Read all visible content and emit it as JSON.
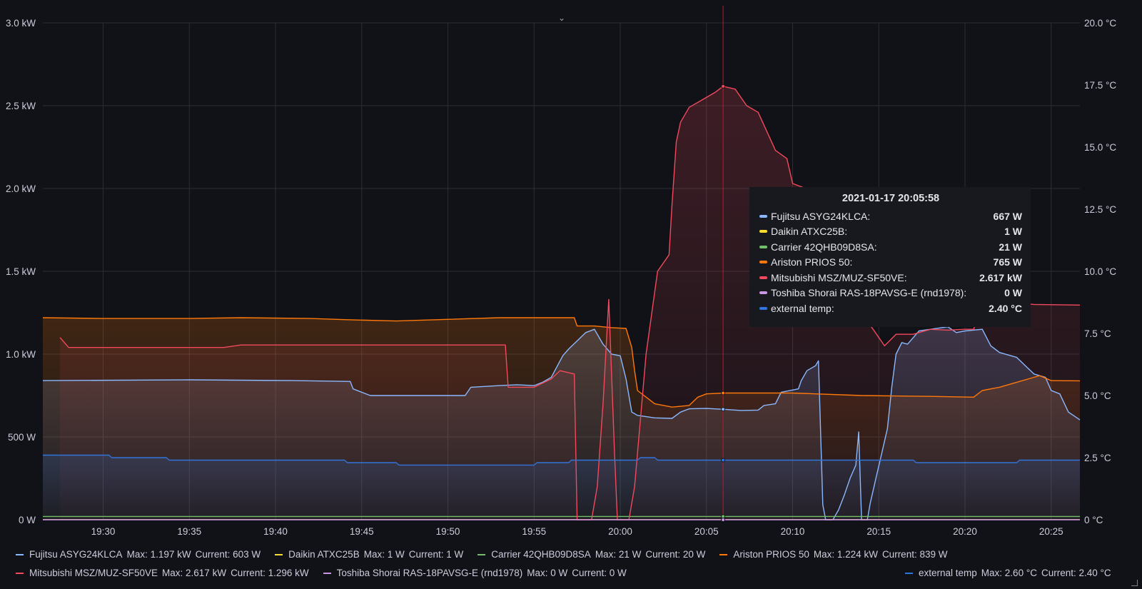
{
  "colors": {
    "background": "#111217",
    "grid": "#2c2d33",
    "text": "#ccccdc"
  },
  "chart_data": {
    "type": "line",
    "x_range": [
      "19:26:30",
      "20:26:40"
    ],
    "x_ticks": [
      "19:30",
      "19:35",
      "19:40",
      "19:45",
      "19:50",
      "19:55",
      "20:00",
      "20:05",
      "20:10",
      "20:15",
      "20:20",
      "20:25"
    ],
    "y_left": {
      "unit": "W",
      "range": [
        0,
        3000
      ],
      "ticks": [
        {
          "value": 0,
          "label": "0 W"
        },
        {
          "value": 500,
          "label": "500 W"
        },
        {
          "value": 1000,
          "label": "1.0 kW"
        },
        {
          "value": 1500,
          "label": "1.5 kW"
        },
        {
          "value": 2000,
          "label": "2.0 kW"
        },
        {
          "value": 2500,
          "label": "2.5 kW"
        },
        {
          "value": 3000,
          "label": "3.0 kW"
        }
      ]
    },
    "y_right": {
      "unit": "°C",
      "range": [
        0,
        20
      ],
      "ticks": [
        {
          "value": 0,
          "label": "0 °C"
        },
        {
          "value": 2.5,
          "label": "2.5 °C"
        },
        {
          "value": 5,
          "label": "5.0 °C"
        },
        {
          "value": 7.5,
          "label": "7.5 °C"
        },
        {
          "value": 10,
          "label": "10.0 °C"
        },
        {
          "value": 12.5,
          "label": "12.5 °C"
        },
        {
          "value": 15,
          "label": "15.0 °C"
        },
        {
          "value": 17.5,
          "label": "17.5 °C"
        },
        {
          "value": 20,
          "label": "20.0 °C"
        }
      ]
    },
    "grid": true,
    "legend_placement": "bottom",
    "crosshair_time": "20:05:58",
    "series": [
      {
        "name": "Fujitsu ASYG24KLCA",
        "axis": "left",
        "color": "#8ab8ff",
        "fill": true,
        "max": "Max: 1.197 kW",
        "current": "Current: 603 W",
        "tooltip_value": "667 W",
        "points": [
          [
            "19:26:30",
            840
          ],
          [
            "19:35",
            845
          ],
          [
            "19:41",
            840
          ],
          [
            "19:44:20",
            835
          ],
          [
            "19:44:30",
            790
          ],
          [
            "19:45:30",
            750
          ],
          [
            "19:51",
            750
          ],
          [
            "19:51:20",
            800
          ],
          [
            "19:53",
            810
          ],
          [
            "19:54",
            815
          ],
          [
            "19:55",
            810
          ],
          [
            "19:55:30",
            830
          ],
          [
            "19:56",
            860
          ],
          [
            "19:56:40",
            990
          ],
          [
            "19:57",
            1030
          ],
          [
            "19:58",
            1130
          ],
          [
            "19:58:30",
            1150
          ],
          [
            "19:59",
            1060
          ],
          [
            "19:59:30",
            1000
          ],
          [
            "20:00",
            990
          ],
          [
            "20:00:20",
            850
          ],
          [
            "20:00:40",
            650
          ],
          [
            "20:01",
            630
          ],
          [
            "20:02",
            615
          ],
          [
            "20:03",
            612
          ],
          [
            "20:03:30",
            650
          ],
          [
            "20:04",
            670
          ],
          [
            "20:05",
            672
          ],
          [
            "20:06",
            667
          ],
          [
            "20:07",
            660
          ],
          [
            "20:08",
            662
          ],
          [
            "20:08:20",
            690
          ],
          [
            "20:09",
            700
          ],
          [
            "20:09:20",
            770
          ],
          [
            "20:10:20",
            790
          ],
          [
            "20:10:30",
            840
          ],
          [
            "20:10:50",
            900
          ],
          [
            "20:11:20",
            930
          ],
          [
            "20:11:30",
            960
          ],
          [
            "20:11:45",
            90
          ],
          [
            "20:11:55",
            0
          ],
          [
            "20:12:20",
            0
          ],
          [
            "20:12:40",
            60
          ],
          [
            "20:13",
            150
          ],
          [
            "20:13:20",
            250
          ],
          [
            "20:13:40",
            330
          ],
          [
            "20:13:50",
            530
          ],
          [
            "20:14",
            0
          ],
          [
            "20:14:20",
            0
          ],
          [
            "20:14:30",
            100
          ],
          [
            "20:14:50",
            250
          ],
          [
            "20:15:10",
            400
          ],
          [
            "20:15:30",
            550
          ],
          [
            "20:15:45",
            800
          ],
          [
            "20:16",
            1000
          ],
          [
            "20:16:20",
            1070
          ],
          [
            "20:16:40",
            1060
          ],
          [
            "20:17",
            1100
          ],
          [
            "20:17:20",
            1140
          ],
          [
            "20:18",
            1150
          ],
          [
            "20:19",
            1165
          ],
          [
            "20:19:30",
            1130
          ],
          [
            "20:20",
            1140
          ],
          [
            "20:21",
            1150
          ],
          [
            "20:21:30",
            1050
          ],
          [
            "20:22",
            1010
          ],
          [
            "20:23",
            980
          ],
          [
            "20:23:30",
            930
          ],
          [
            "20:24",
            880
          ],
          [
            "20:24:40",
            860
          ],
          [
            "20:25",
            780
          ],
          [
            "20:25:30",
            760
          ],
          [
            "20:26",
            650
          ],
          [
            "20:26:40",
            603
          ]
        ]
      },
      {
        "name": "Daikin ATXC25B",
        "axis": "left",
        "color": "#fade2a",
        "fill": false,
        "max": "Max: 1 W",
        "current": "Current: 1 W",
        "tooltip_value": "1 W",
        "points": [
          [
            "19:26:30",
            1
          ],
          [
            "20:26:40",
            1
          ]
        ]
      },
      {
        "name": "Carrier 42QHB09D8SA",
        "axis": "left",
        "color": "#73bf69",
        "fill": false,
        "max": "Max: 21 W",
        "current": "Current: 20 W",
        "tooltip_value": "21 W",
        "points": [
          [
            "19:26:30",
            20
          ],
          [
            "20:26:40",
            20
          ]
        ]
      },
      {
        "name": "Ariston PRIOS 50",
        "axis": "left",
        "color": "#ff780a",
        "fill": true,
        "max": "Max: 1.224 kW",
        "current": "Current: 839 W",
        "tooltip_value": "765 W",
        "points": [
          [
            "19:26:30",
            1220
          ],
          [
            "19:30",
            1215
          ],
          [
            "19:35",
            1215
          ],
          [
            "19:38",
            1220
          ],
          [
            "19:42",
            1215
          ],
          [
            "19:44",
            1208
          ],
          [
            "19:47",
            1200
          ],
          [
            "19:50",
            1210
          ],
          [
            "19:53",
            1220
          ],
          [
            "19:57:20",
            1220
          ],
          [
            "19:57:30",
            1170
          ],
          [
            "19:58:30",
            1170
          ],
          [
            "19:59:30",
            1160
          ],
          [
            "20:00:20",
            1155
          ],
          [
            "20:00:40",
            1040
          ],
          [
            "20:00:50",
            900
          ],
          [
            "20:01",
            780
          ],
          [
            "20:02",
            700
          ],
          [
            "20:03",
            680
          ],
          [
            "20:04",
            690
          ],
          [
            "20:04:30",
            740
          ],
          [
            "20:05",
            760
          ],
          [
            "20:06",
            765
          ],
          [
            "20:10",
            765
          ],
          [
            "20:14",
            750
          ],
          [
            "20:18",
            745
          ],
          [
            "20:20:30",
            740
          ],
          [
            "20:21",
            780
          ],
          [
            "20:22",
            800
          ],
          [
            "20:23",
            830
          ],
          [
            "20:24",
            860
          ],
          [
            "20:24:20",
            870
          ],
          [
            "20:25",
            840
          ],
          [
            "20:26:40",
            839
          ]
        ]
      },
      {
        "name": "Mitsubishi MSZ/MUZ-SF50VE",
        "axis": "left",
        "color": "#f2495c",
        "fill": true,
        "max": "Max: 2.617 kW",
        "current": "Current: 1.296 kW",
        "tooltip_value": "2.617 kW",
        "points": [
          [
            "19:27:30",
            1100
          ],
          [
            "19:28",
            1040
          ],
          [
            "19:37",
            1040
          ],
          [
            "19:38",
            1055
          ],
          [
            "19:53:20",
            1055
          ],
          [
            "19:53:30",
            800
          ],
          [
            "19:55",
            800
          ],
          [
            "19:56",
            850
          ],
          [
            "19:56:30",
            900
          ],
          [
            "19:57:20",
            880
          ],
          [
            "19:57:30",
            0
          ],
          [
            "19:58:20",
            0
          ],
          [
            "19:58:40",
            200
          ],
          [
            "19:59",
            700
          ],
          [
            "19:59:20",
            1330
          ],
          [
            "19:59:40",
            400
          ],
          [
            "19:59:50",
            0
          ],
          [
            "20:00:30",
            0
          ],
          [
            "20:00:50",
            200
          ],
          [
            "20:01:30",
            1000
          ],
          [
            "20:02:10",
            1500
          ],
          [
            "20:02:30",
            1550
          ],
          [
            "20:02:50",
            1600
          ],
          [
            "20:03",
            1900
          ],
          [
            "20:03:15",
            2280
          ],
          [
            "20:03:30",
            2400
          ],
          [
            "20:04",
            2490
          ],
          [
            "20:05",
            2550
          ],
          [
            "20:05:30",
            2580
          ],
          [
            "20:05:58",
            2617
          ],
          [
            "20:06:40",
            2600
          ],
          [
            "20:07:20",
            2500
          ],
          [
            "20:08",
            2460
          ],
          [
            "20:09",
            2230
          ],
          [
            "20:09:40",
            2180
          ],
          [
            "20:10",
            2030
          ],
          [
            "20:11",
            1990
          ],
          [
            "20:12",
            1950
          ],
          [
            "20:13",
            1850
          ],
          [
            "20:13:40",
            1700
          ],
          [
            "20:14",
            1400
          ],
          [
            "20:14:20",
            1200
          ],
          [
            "20:14:40",
            1150
          ],
          [
            "20:15",
            1100
          ],
          [
            "20:15:20",
            1050
          ],
          [
            "20:16",
            1120
          ],
          [
            "20:17",
            1120
          ],
          [
            "20:18",
            1150
          ],
          [
            "20:19",
            1145
          ],
          [
            "20:20",
            1150
          ],
          [
            "20:20:30",
            1150
          ],
          [
            "20:21",
            1300
          ],
          [
            "20:22",
            1320
          ],
          [
            "20:24",
            1300
          ],
          [
            "20:26:40",
            1296
          ]
        ]
      },
      {
        "name": "Toshiba Shorai RAS-18PAVSG-E (rnd1978)",
        "axis": "left",
        "color": "#ca95e5",
        "fill": false,
        "max": "Max: 0 W",
        "current": "Current: 0 W",
        "tooltip_value": "0 W",
        "points": [
          [
            "19:26:30",
            0
          ],
          [
            "20:26:40",
            0
          ]
        ]
      },
      {
        "name": "external temp",
        "axis": "right",
        "color": "#3274d9",
        "fill": true,
        "max": "Max: 2.60 °C",
        "current": "Current: 2.40 °C",
        "tooltip_value": "2.40 °C",
        "points": [
          [
            "19:26:30",
            2.6
          ],
          [
            "19:30:20",
            2.6
          ],
          [
            "19:30:30",
            2.5
          ],
          [
            "19:33:40",
            2.5
          ],
          [
            "19:33:50",
            2.4
          ],
          [
            "19:44",
            2.4
          ],
          [
            "19:44:10",
            2.3
          ],
          [
            "19:47",
            2.3
          ],
          [
            "19:47:10",
            2.2
          ],
          [
            "19:55",
            2.2
          ],
          [
            "19:55:10",
            2.3
          ],
          [
            "19:57",
            2.3
          ],
          [
            "19:57:10",
            2.4
          ],
          [
            "20:01",
            2.4
          ],
          [
            "20:01:10",
            2.5
          ],
          [
            "20:02",
            2.5
          ],
          [
            "20:02:10",
            2.4
          ],
          [
            "20:17",
            2.4
          ],
          [
            "20:17:10",
            2.3
          ],
          [
            "20:23",
            2.3
          ],
          [
            "20:23:10",
            2.4
          ],
          [
            "20:26:40",
            2.4
          ]
        ]
      }
    ]
  },
  "tooltip": {
    "time": "2021-01-17 20:05:58",
    "rows": [
      {
        "label": "Fujitsu ASYG24KLCA:",
        "value": "667 W",
        "color": "#8ab8ff"
      },
      {
        "label": "Daikin ATXC25B:",
        "value": "1 W",
        "color": "#fade2a"
      },
      {
        "label": "Carrier 42QHB09D8SA:",
        "value": "21 W",
        "color": "#73bf69"
      },
      {
        "label": "Ariston PRIOS 50:",
        "value": "765 W",
        "color": "#ff780a"
      },
      {
        "label": "Mitsubishi MSZ/MUZ-SF50VE:",
        "value": "2.617 kW",
        "color": "#f2495c"
      },
      {
        "label": "Toshiba Shorai RAS-18PAVSG-E (rnd1978):",
        "value": "0 W",
        "color": "#ca95e5"
      },
      {
        "label": "external temp:",
        "value": "2.40 °C",
        "color": "#3274d9"
      }
    ]
  },
  "legend": {
    "row1": [
      {
        "name": "Fujitsu ASYG24KLCA",
        "max": "Max: 1.197 kW",
        "current": "Current: 603 W",
        "color": "#8ab8ff"
      },
      {
        "name": "Daikin ATXC25B",
        "max": "Max: 1 W",
        "current": "Current: 1 W",
        "color": "#fade2a"
      },
      {
        "name": "Carrier 42QHB09D8SA",
        "max": "Max: 21 W",
        "current": "Current: 20 W",
        "color": "#73bf69"
      },
      {
        "name": "Ariston PRIOS 50",
        "max": "Max: 1.224 kW",
        "current": "Current: 839 W",
        "color": "#ff780a"
      }
    ],
    "row2": [
      {
        "name": "Mitsubishi MSZ/MUZ-SF50VE",
        "max": "Max: 2.617 kW",
        "current": "Current: 1.296 kW",
        "color": "#f2495c"
      },
      {
        "name": "Toshiba Shorai RAS-18PAVSG-E (rnd1978)",
        "max": "Max: 0 W",
        "current": "Current: 0 W",
        "color": "#ca95e5"
      }
    ],
    "right": {
      "name": "external temp",
      "max": "Max: 2.60 °C",
      "current": "Current: 2.40 °C",
      "color": "#3274d9"
    }
  },
  "collapse_icon": "chevron-down-icon"
}
